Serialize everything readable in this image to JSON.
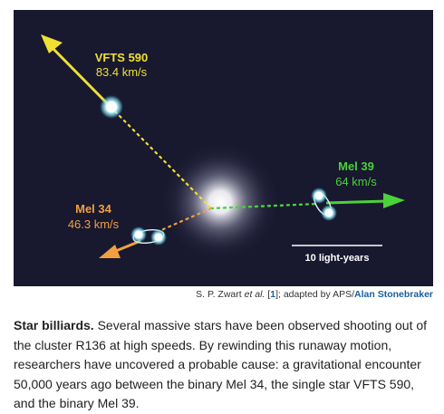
{
  "figure": {
    "stars": {
      "vfts590": {
        "name": "VFTS 590",
        "speed": "83.4 km/s"
      },
      "mel39": {
        "name": "Mel 39",
        "speed": "64 km/s"
      },
      "mel34": {
        "name": "Mel 34",
        "speed": "46.3 km/s"
      }
    },
    "scale_bar_label": "10 light-years",
    "colors": {
      "background": "#18182f",
      "vfts590": "#f0e030",
      "mel39": "#4ad23a",
      "mel34": "#f0a040",
      "star_glow": "#bff3ff"
    }
  },
  "credit": {
    "author": "S. P. Zwart",
    "etal": "et al.",
    "ref_open": " [",
    "ref": "1",
    "ref_close": "]; adapted by APS/",
    "illustrator": "Alan Stonebraker"
  },
  "caption": {
    "lead": "Star billiards.",
    "body": " Several massive stars have been observed shooting out of the cluster R136 at high speeds. By rewinding this runaway motion, researchers have uncovered a probable cause: a gravitational encounter 50,000 years ago between the binary Mel 34, the single star VFTS 590, and the binary Mel 39."
  }
}
